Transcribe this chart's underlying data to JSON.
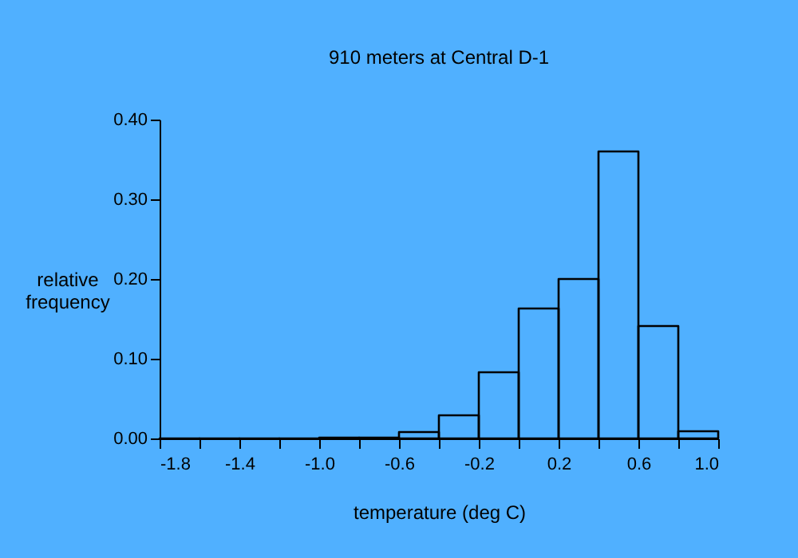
{
  "chart_data": {
    "type": "histogram",
    "title": "910 meters at Central D-1",
    "xlabel": "temperature (deg C)",
    "ylabel": "relative frequency",
    "bins": [
      -1.8,
      -1.6,
      -1.4,
      -1.2,
      -1.0,
      -0.8,
      -0.6,
      -0.4,
      -0.2,
      0.0,
      0.2,
      0.4,
      0.6,
      0.8,
      1.0
    ],
    "values": [
      0,
      0,
      0,
      0,
      0.001,
      0.001,
      0.008,
      0.029,
      0.083,
      0.163,
      0.2,
      0.36,
      0.141,
      0.009
    ],
    "color": "#000000",
    "xlim": [
      -1.8,
      1.0
    ],
    "xticks": [
      -1.8,
      {
        "value": -1.6,
        "label": null
      },
      -1.4,
      {
        "value": -1.2,
        "label": null
      },
      {
        "value": -1.0,
        "label": "-1.0"
      },
      {
        "value": -0.8,
        "label": null
      },
      -0.6,
      {
        "value": -0.4,
        "label": null
      },
      -0.2,
      {
        "value": 0.0,
        "label": null
      },
      0.2,
      {
        "value": 0.4,
        "label": null
      },
      0.6,
      {
        "value": 0.8,
        "label": null
      },
      {
        "value": 1.0,
        "label": "1.0"
      }
    ],
    "ylim": [
      0,
      0.4
    ],
    "yticks": [
      {
        "value": 0,
        "label": "0.00"
      },
      {
        "value": 0.1,
        "label": "0.10"
      },
      {
        "value": 0.2,
        "label": "0.20"
      },
      {
        "value": 0.3,
        "label": "0.30"
      },
      {
        "value": 0.4,
        "label": "0.40"
      }
    ],
    "grid": false
  }
}
